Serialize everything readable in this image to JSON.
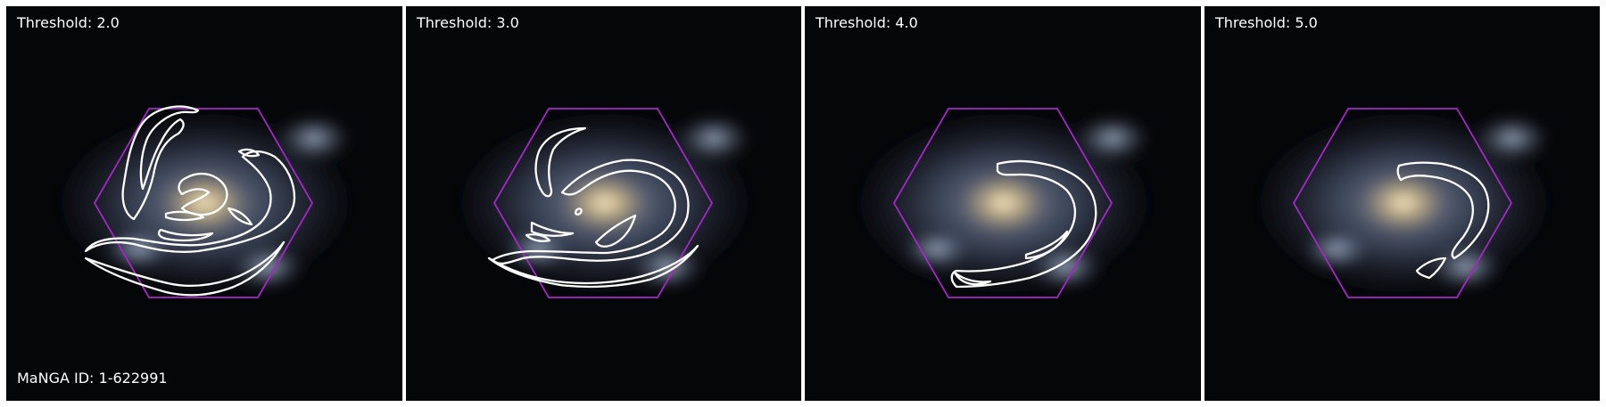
{
  "figure": {
    "manga_id_label": "MaNGA ID: 1-622991"
  },
  "panels": [
    {
      "label": "Threshold: 2.0",
      "threshold": 2.0
    },
    {
      "label": "Threshold: 3.0",
      "threshold": 3.0
    },
    {
      "label": "Threshold: 4.0",
      "threshold": 4.0
    },
    {
      "label": "Threshold: 5.0",
      "threshold": 5.0
    }
  ],
  "colors": {
    "sky_background": "#050608",
    "galaxy_core": "#ddc48a",
    "galaxy_disk": "#7d8aa8",
    "hexagon_outline": "#a626c8",
    "contour": "#ffffff",
    "label_text": "#ffffff"
  }
}
